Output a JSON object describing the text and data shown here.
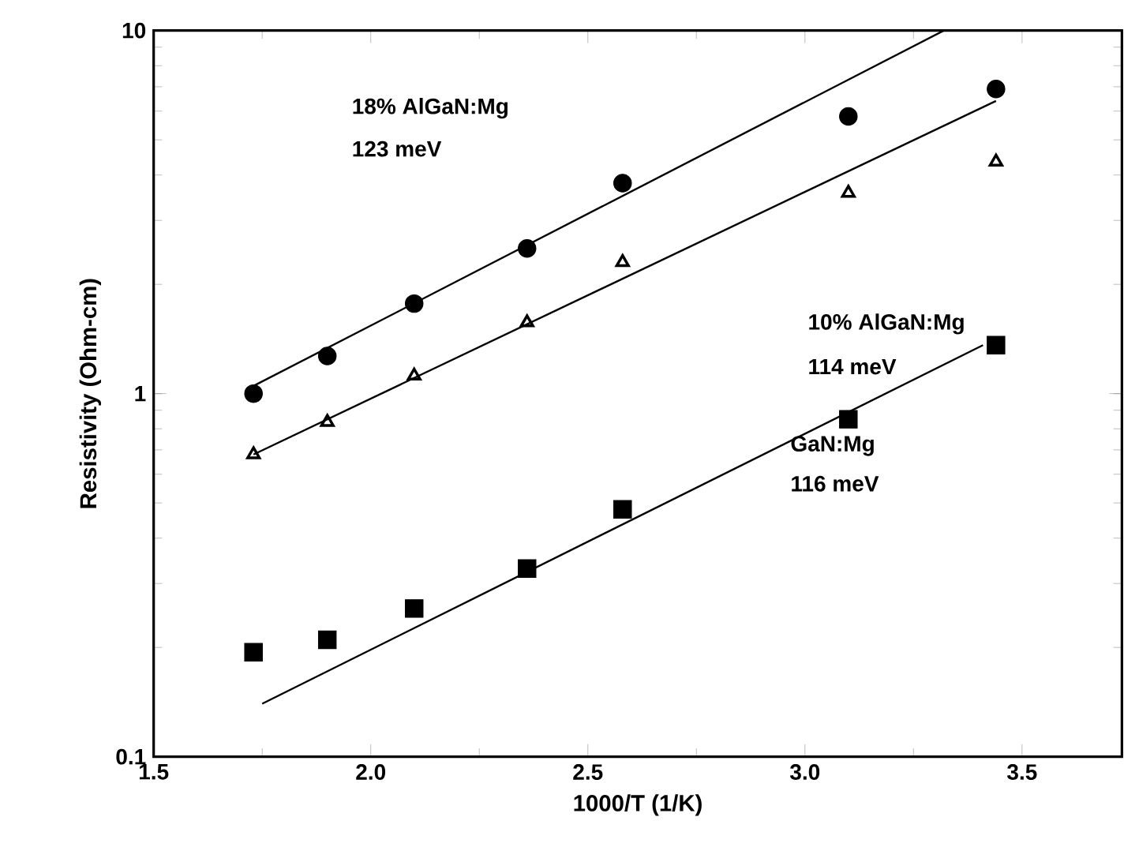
{
  "chart_data": {
    "type": "scatter",
    "xlabel": "1000/T  (1/K)",
    "ylabel": "Resistivity (Ohm-cm)",
    "log": "y",
    "xlim": [
      1.5,
      3.73
    ],
    "ylim": [
      0.1,
      10
    ],
    "xticks": [
      1.5,
      {
        "value": 2.0,
        "label": "2.0"
      },
      2.5,
      {
        "value": 3.0,
        "label": "3.0"
      },
      3.5
    ],
    "yticks": [
      0.1,
      1,
      10
    ],
    "series": [
      {
        "marker": "circle",
        "color": "#000000",
        "x": [
          1.73,
          1.9,
          2.1,
          2.36,
          2.58,
          3.1,
          3.44
        ],
        "values": [
          1.0,
          1.27,
          1.77,
          2.51,
          3.8,
          5.8,
          6.9
        ]
      },
      {
        "marker": "triangle",
        "color": "#000000",
        "x": [
          1.73,
          1.9,
          2.1,
          2.36,
          2.58,
          3.1,
          3.44
        ],
        "values": [
          0.68,
          0.835,
          1.12,
          1.57,
          2.3,
          3.57,
          4.35
        ]
      },
      {
        "marker": "square",
        "color": "#000000",
        "x": [
          1.73,
          1.9,
          2.1,
          2.36,
          2.58,
          3.1,
          3.44
        ],
        "values": [
          0.194,
          0.21,
          0.256,
          0.33,
          0.48,
          0.85,
          1.36
        ]
      },
      {
        "type": "line",
        "marker": "none",
        "color": "#000000",
        "x": [
          1.73,
          3.32
        ],
        "values": [
          1.05,
          10
        ]
      },
      {
        "type": "line",
        "marker": "none",
        "color": "#000000",
        "x": [
          1.73,
          3.44
        ],
        "values": [
          0.68,
          6.4
        ]
      },
      {
        "type": "line",
        "marker": "none",
        "color": "#000000",
        "x": [
          1.75,
          3.41
        ],
        "values": [
          0.14,
          1.36
        ]
      }
    ],
    "annotations": [
      "18% AlGaN:Mg",
      "123 meV",
      "10% AlGaN:Mg",
      "114 meV",
      "GaN:Mg",
      "116 meV"
    ]
  }
}
